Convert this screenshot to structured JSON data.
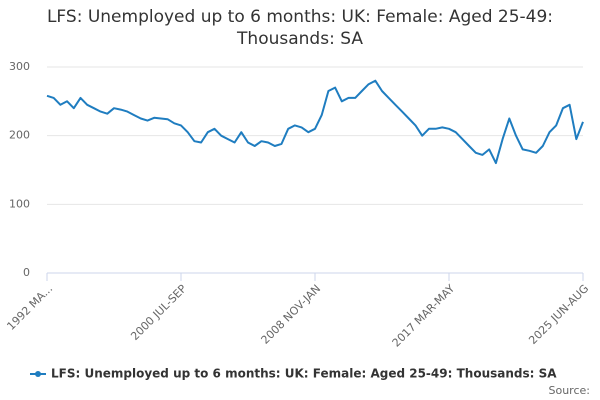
{
  "chart_data": {
    "type": "line",
    "title": "LFS: Unemployed up to 6 months: UK: Female: Aged 25-49: Thousands: SA",
    "categories": [
      "1992 MA...",
      null,
      null,
      null,
      null,
      null,
      null,
      null,
      null,
      null,
      null,
      null,
      null,
      null,
      null,
      null,
      null,
      null,
      null,
      null,
      "2000 JUL-SEP",
      null,
      null,
      null,
      null,
      null,
      null,
      null,
      null,
      null,
      null,
      null,
      null,
      null,
      null,
      null,
      null,
      null,
      null,
      null,
      "2008 NOV-JAN",
      null,
      null,
      null,
      null,
      null,
      null,
      null,
      null,
      null,
      null,
      null,
      null,
      null,
      null,
      null,
      null,
      null,
      null,
      null,
      "2017 MAR-MAY",
      null,
      null,
      null,
      null,
      null,
      null,
      null,
      null,
      null,
      null,
      null,
      null,
      null,
      null,
      null,
      null,
      null,
      null,
      null,
      "2025 JUN-AUG"
    ],
    "series": [
      {
        "name": "LFS: Unemployed up to 6 months: UK: Female: Aged 25-49: Thousands: SA",
        "color": "#1f7dc0",
        "values": [
          258,
          255,
          245,
          250,
          240,
          255,
          245,
          240,
          235,
          232,
          240,
          238,
          235,
          230,
          225,
          222,
          226,
          225,
          224,
          218,
          215,
          205,
          192,
          190,
          205,
          210,
          200,
          195,
          190,
          205,
          190,
          185,
          192,
          190,
          185,
          188,
          210,
          215,
          212,
          205,
          210,
          230,
          265,
          270,
          250,
          255,
          255,
          265,
          275,
          280,
          265,
          255,
          245,
          235,
          225,
          215,
          200,
          210,
          210,
          212,
          210,
          205,
          195,
          185,
          175,
          172,
          180,
          160,
          195,
          225,
          200,
          180,
          178,
          175,
          185,
          205,
          215,
          240,
          245,
          195,
          220
        ]
      }
    ],
    "ylim": [
      0,
      300
    ],
    "yticks": [
      0,
      100,
      200,
      300
    ],
    "grid": true,
    "source": "Source:"
  }
}
